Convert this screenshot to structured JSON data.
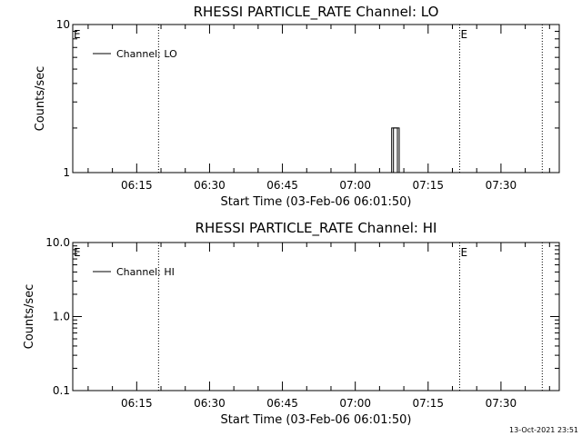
{
  "footer": {
    "timestamp": "13-Oct-2021 23:51"
  },
  "chart_data": [
    {
      "type": "line",
      "title": "RHESSI PARTICLE_RATE Channel: LO",
      "xlabel": "Start Time (03-Feb-06 06:01:50)",
      "ylabel": "Counts/sec",
      "yscale": "log",
      "ylim": [
        1,
        10
      ],
      "yticks": [
        1,
        10
      ],
      "ytick_labels": [
        "1",
        "10"
      ],
      "xlim": [
        "06:01:50",
        "07:42:00"
      ],
      "xticks": [
        "06:15",
        "06:30",
        "06:45",
        "07:00",
        "07:15",
        "07:30"
      ],
      "markers": [
        {
          "time": "06:01:50",
          "label": "E"
        },
        {
          "time": "07:21:30",
          "label": "E"
        }
      ],
      "vlines": [
        "06:19:30",
        "07:21:30",
        "07:38:30"
      ],
      "legend": {
        "entries": [
          "Channel: LO"
        ],
        "position": "top-left"
      },
      "series": [
        {
          "name": "Channel: LO",
          "points": [
            [
              "07:07:30",
              1
            ],
            [
              "07:07:30",
              2
            ],
            [
              "07:08:40",
              2
            ],
            [
              "07:08:40",
              1
            ]
          ]
        }
      ]
    },
    {
      "type": "line",
      "title": "RHESSI PARTICLE_RATE Channel: HI",
      "xlabel": "Start Time (03-Feb-06 06:01:50)",
      "ylabel": "Counts/sec",
      "yscale": "log",
      "ylim": [
        0.1,
        10
      ],
      "yticks": [
        0.1,
        1,
        10
      ],
      "ytick_labels": [
        "0.1",
        "1.0",
        "10.0"
      ],
      "xlim": [
        "06:01:50",
        "07:42:00"
      ],
      "xticks": [
        "06:15",
        "06:30",
        "06:45",
        "07:00",
        "07:15",
        "07:30"
      ],
      "markers": [
        {
          "time": "06:01:50",
          "label": "E"
        },
        {
          "time": "07:21:30",
          "label": "E"
        }
      ],
      "vlines": [
        "06:19:30",
        "07:21:30",
        "07:38:30"
      ],
      "legend": {
        "entries": [
          "Channel: HI"
        ],
        "position": "top-left"
      },
      "series": [
        {
          "name": "Channel: HI",
          "points": []
        }
      ]
    }
  ]
}
